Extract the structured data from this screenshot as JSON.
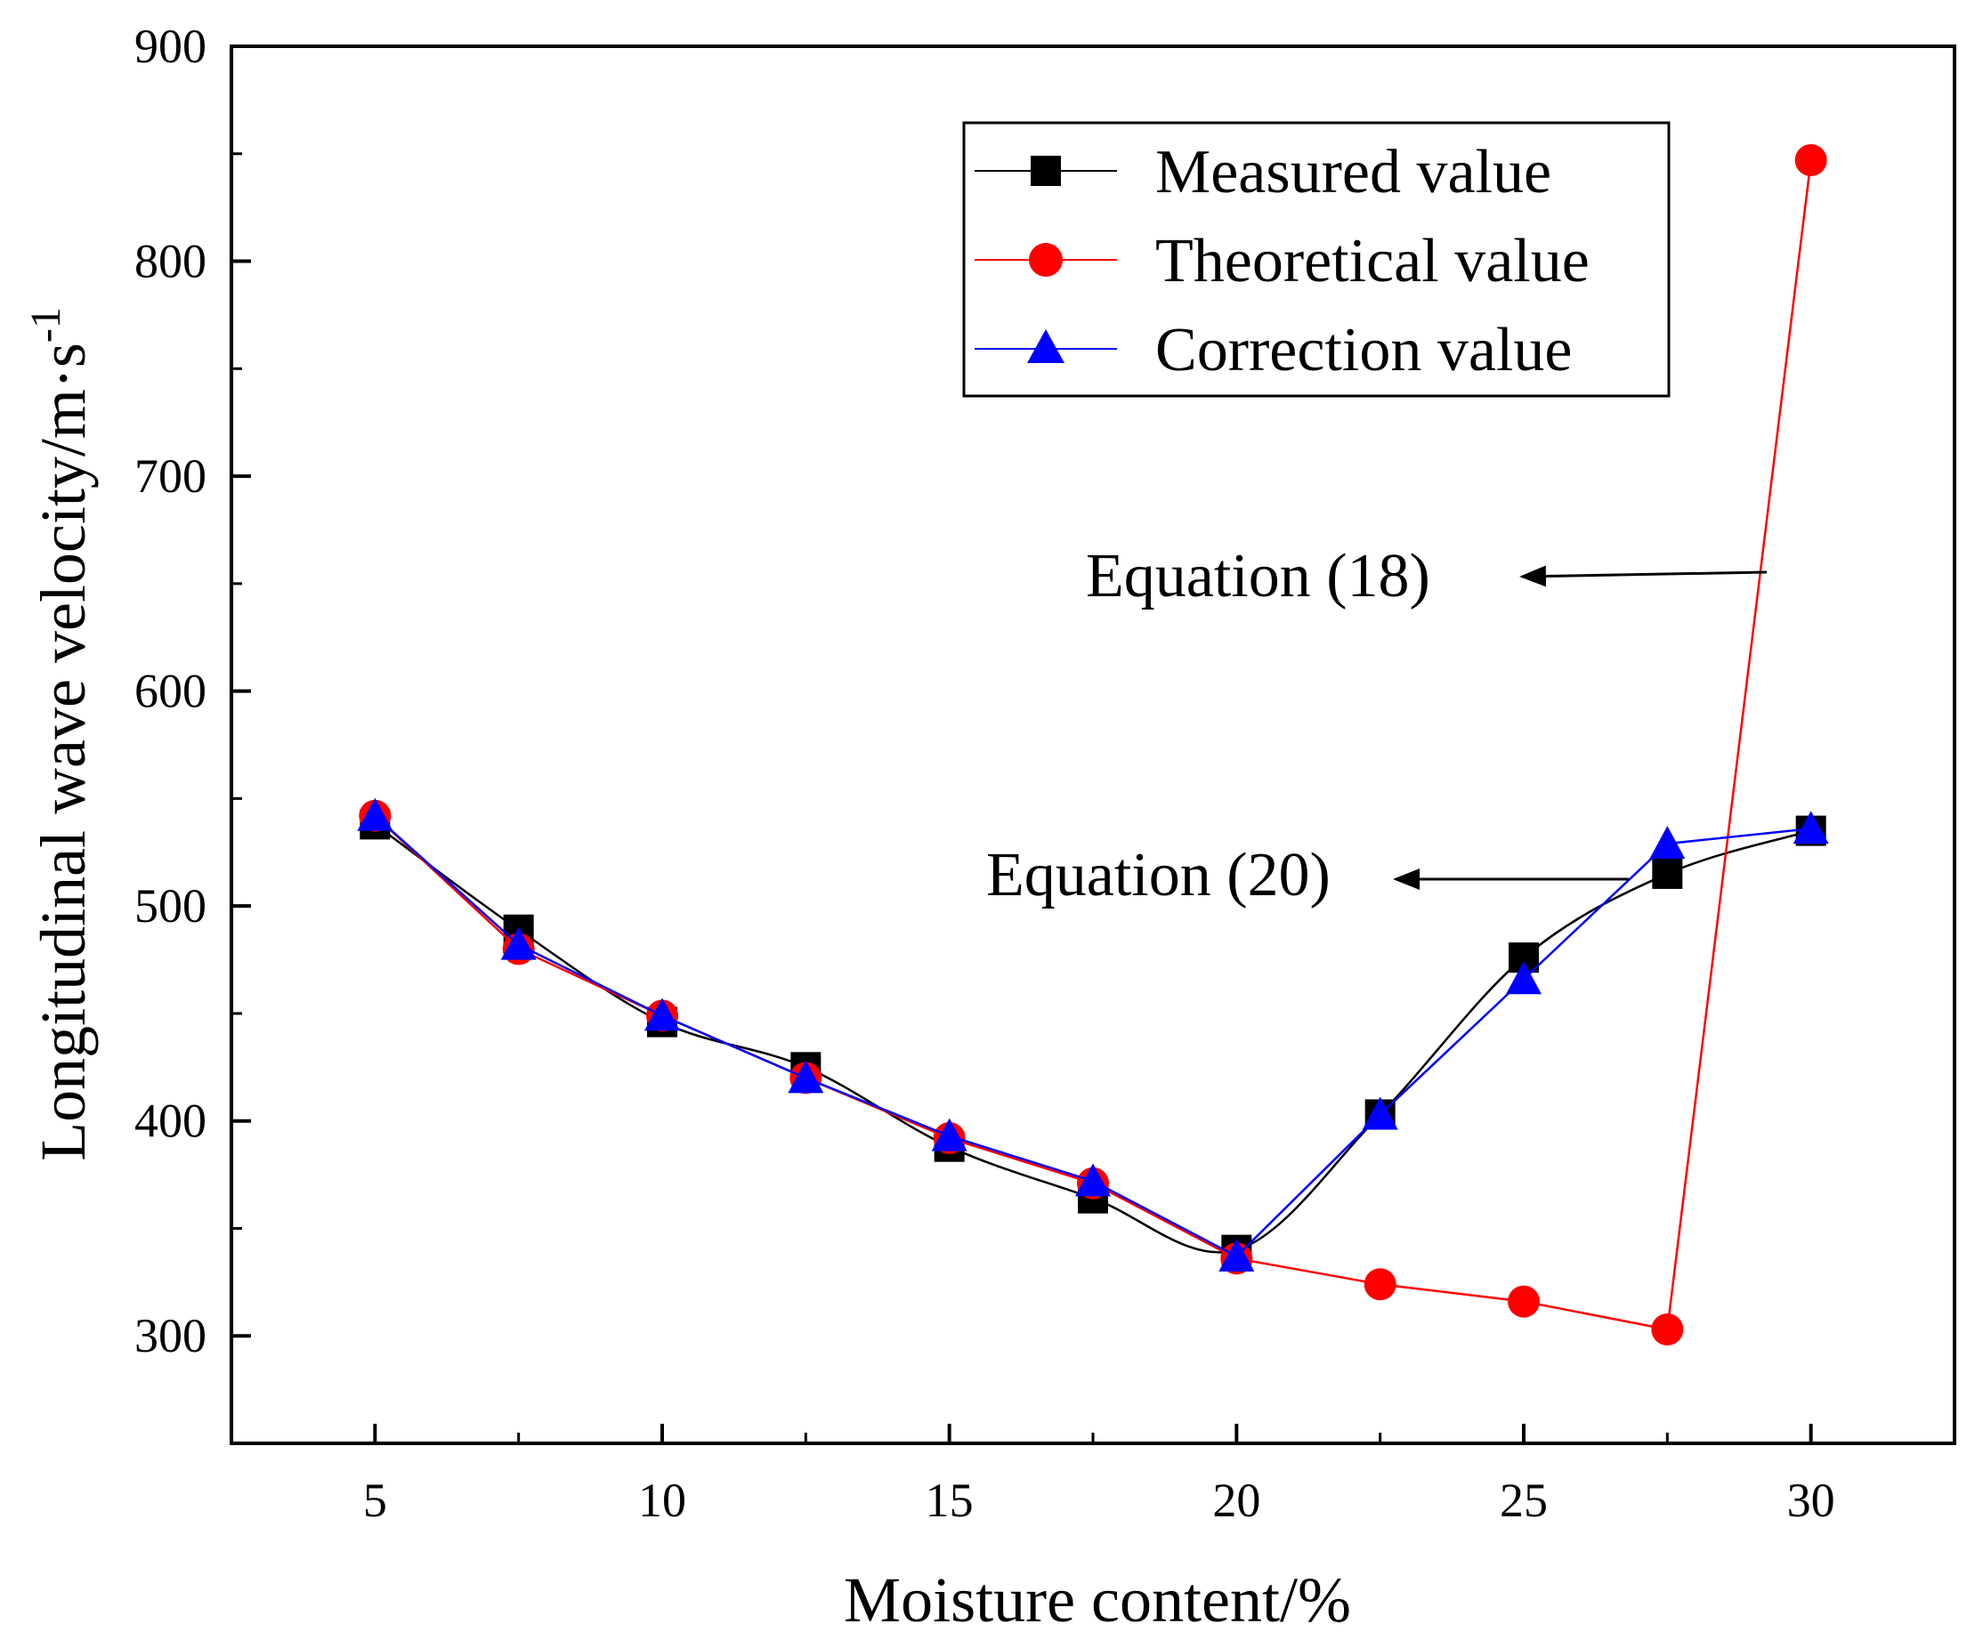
{
  "chart_data": {
    "type": "line",
    "title": "",
    "xlabel": "Moisture content/%",
    "ylabel": "Longitudinal wave velocity/m·s",
    "ylabel_superscript": "-1",
    "xlim": [
      2.5,
      32.5
    ],
    "ylim": [
      250,
      900
    ],
    "xticks": [
      5,
      10,
      15,
      20,
      25,
      30
    ],
    "yticks": [
      300,
      400,
      500,
      600,
      700,
      800,
      900
    ],
    "x": [
      5,
      7.5,
      10,
      12.5,
      15,
      17.5,
      20,
      22.5,
      25,
      27.5,
      30
    ],
    "series": [
      {
        "name": "Measured value",
        "color": "#000000",
        "marker": "square",
        "smooth": true,
        "values": [
          538,
          489,
          446,
          425,
          388,
          364,
          340,
          403,
          476,
          515,
          535
        ]
      },
      {
        "name": "Theoretical value",
        "color": "#ff0000",
        "marker": "circle",
        "smooth": false,
        "values": [
          542,
          480,
          449,
          420,
          392,
          371,
          336,
          324,
          316,
          303,
          847
        ]
      },
      {
        "name": "Correction value",
        "color": "#0000ff",
        "marker": "triangle",
        "smooth": false,
        "values": [
          542,
          482,
          449,
          420,
          393,
          372,
          337,
          403,
          466,
          529,
          536
        ]
      }
    ],
    "legend_position": "top-right",
    "annotations": [
      {
        "text": "Equation (18)",
        "points_to": "Theoretical value",
        "at_x": 28.5,
        "at_y": 656
      },
      {
        "text": "Equation (20)",
        "points_to": "Correction value",
        "at_x": 27.8,
        "at_y": 512
      }
    ]
  }
}
